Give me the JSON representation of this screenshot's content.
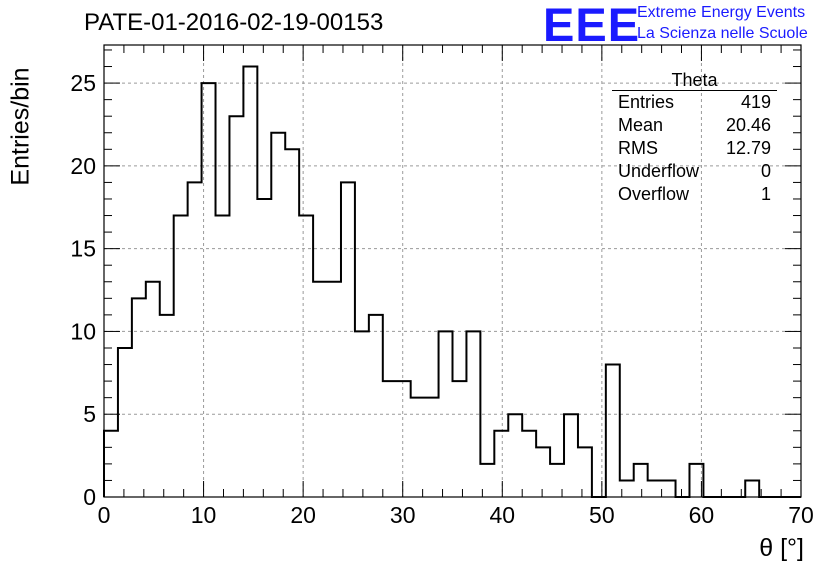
{
  "header": {
    "title": "PATE-01-2016-02-19-00153",
    "logo": "EEE",
    "logo_line1": "Extreme Energy Events",
    "logo_line2": "La Scienza nelle Scuole"
  },
  "stats_box": {
    "name": "Theta",
    "rows": [
      {
        "label": "Entries",
        "value": "419"
      },
      {
        "label": "Mean",
        "value": "20.46"
      },
      {
        "label": "RMS",
        "value": "12.79"
      },
      {
        "label": "Underflow",
        "value": "0"
      },
      {
        "label": "Overflow",
        "value": "1"
      }
    ]
  },
  "chart_data": {
    "type": "bar",
    "title": "PATE-01-2016-02-19-00153",
    "xlabel": "θ [°]",
    "ylabel": "Entries/bin",
    "xlim": [
      0,
      70
    ],
    "ylim": [
      0,
      27.3
    ],
    "bin_width": 1.4,
    "x_ticks": [
      0,
      10,
      20,
      30,
      40,
      50,
      60,
      70
    ],
    "y_ticks": [
      0,
      5,
      10,
      15,
      20,
      25
    ],
    "grid": true,
    "line_color": "#000000",
    "values": [
      4,
      9,
      12,
      13,
      11,
      17,
      19,
      25,
      17,
      23,
      26,
      18,
      22,
      21,
      17,
      13,
      13,
      19,
      10,
      11,
      7,
      7,
      6,
      6,
      10,
      7,
      10,
      2,
      4,
      5,
      4,
      3,
      2,
      5,
      3,
      0,
      8,
      1,
      2,
      1,
      1,
      0,
      2,
      0,
      0,
      0,
      1,
      0,
      0,
      0
    ]
  }
}
